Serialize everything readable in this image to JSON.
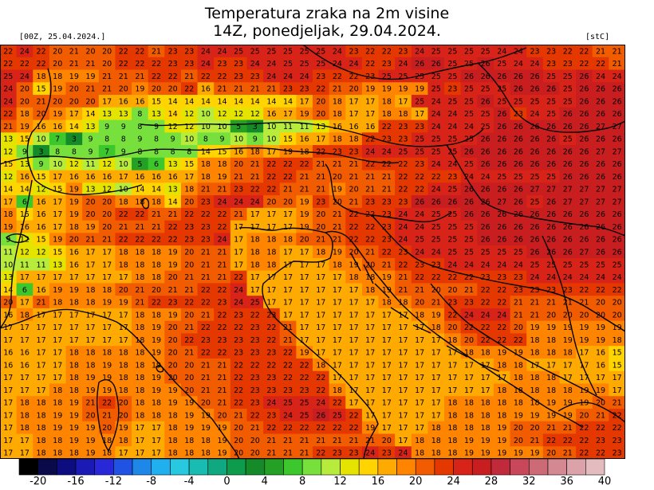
{
  "title_line1": "Temperatura zraka na 2m visine",
  "title_line2": "14Z, ponedjeljak, 29.04.2024.",
  "init_label": "[00Z, 25.04.2024.]",
  "unit_label": "[stC]",
  "map_data": {
    "grid_rows": [
      [
        22,
        24,
        22,
        20,
        21,
        20,
        20,
        22,
        22,
        21,
        23,
        23,
        24,
        24,
        25,
        25,
        25,
        25,
        25,
        25,
        24,
        23,
        22,
        22,
        23,
        24,
        25,
        25,
        25,
        25,
        24,
        24,
        23,
        23,
        22,
        22,
        21,
        21
      ],
      [
        22,
        22,
        22,
        20,
        21,
        21,
        20,
        22,
        22,
        22,
        23,
        23,
        24,
        23,
        23,
        24,
        24,
        25,
        25,
        25,
        24,
        24,
        22,
        23,
        24,
        26,
        26,
        25,
        25,
        26,
        25,
        24,
        24,
        23,
        23,
        22,
        22,
        21
      ],
      [
        25,
        24,
        18,
        18,
        19,
        19,
        21,
        21,
        21,
        22,
        22,
        21,
        22,
        22,
        23,
        23,
        24,
        24,
        24,
        23,
        22,
        22,
        23,
        25,
        25,
        25,
        25,
        25,
        26,
        26,
        26,
        26,
        26,
        25,
        25,
        26,
        24,
        24
      ],
      [
        24,
        20,
        15,
        19,
        20,
        21,
        21,
        20,
        19,
        20,
        20,
        22,
        16,
        21,
        21,
        21,
        21,
        23,
        23,
        22,
        21,
        20,
        19,
        19,
        19,
        19,
        25,
        23,
        25,
        25,
        25,
        26,
        26,
        26,
        25,
        26,
        26,
        26
      ],
      [
        24,
        20,
        21,
        20,
        20,
        20,
        17,
        16,
        16,
        15,
        14,
        14,
        14,
        14,
        14,
        14,
        14,
        14,
        17,
        20,
        18,
        17,
        17,
        18,
        17,
        25,
        24,
        25,
        25,
        26,
        25,
        25,
        25,
        25,
        25,
        26,
        26,
        26
      ],
      [
        22,
        18,
        20,
        19,
        17,
        14,
        13,
        13,
        8,
        13,
        14,
        12,
        10,
        12,
        12,
        12,
        16,
        17,
        19,
        20,
        18,
        17,
        17,
        18,
        18,
        17,
        24,
        24,
        25,
        25,
        26,
        23,
        24,
        25,
        26,
        26,
        26,
        26
      ],
      [
        21,
        19,
        16,
        16,
        14,
        13,
        9,
        9,
        8,
        9,
        12,
        12,
        10,
        10,
        5,
        3,
        10,
        11,
        11,
        13,
        16,
        16,
        16,
        22,
        23,
        23,
        24,
        24,
        24,
        25,
        26,
        26,
        26,
        26,
        26,
        26,
        27,
        27
      ],
      [
        13,
        15,
        10,
        7,
        3,
        9,
        8,
        8,
        9,
        8,
        9,
        10,
        8,
        9,
        10,
        9,
        10,
        15,
        16,
        17,
        18,
        18,
        22,
        23,
        23,
        25,
        25,
        25,
        25,
        26,
        26,
        26,
        26,
        26,
        25,
        26,
        26,
        26
      ],
      [
        12,
        9,
        3,
        8,
        8,
        9,
        7,
        9,
        8,
        8,
        8,
        8,
        14,
        15,
        16,
        18,
        17,
        19,
        18,
        22,
        23,
        23,
        24,
        24,
        25,
        25,
        25,
        25,
        26,
        26,
        26,
        26,
        26,
        26,
        26,
        26,
        27,
        27
      ],
      [
        15,
        13,
        9,
        10,
        12,
        11,
        12,
        10,
        5,
        6,
        13,
        15,
        18,
        18,
        20,
        21,
        22,
        22,
        22,
        21,
        21,
        21,
        22,
        22,
        22,
        23,
        24,
        24,
        25,
        26,
        26,
        26,
        26,
        26,
        26,
        26,
        26,
        26
      ],
      [
        12,
        16,
        15,
        17,
        16,
        16,
        16,
        17,
        16,
        16,
        16,
        17,
        18,
        19,
        21,
        21,
        22,
        22,
        21,
        21,
        20,
        21,
        21,
        21,
        22,
        22,
        22,
        23,
        24,
        24,
        25,
        25,
        25,
        25,
        26,
        26,
        26,
        26
      ],
      [
        14,
        14,
        12,
        15,
        19,
        13,
        12,
        10,
        14,
        14,
        13,
        18,
        21,
        21,
        23,
        22,
        22,
        21,
        21,
        21,
        19,
        20,
        21,
        21,
        22,
        22,
        24,
        25,
        26,
        26,
        26,
        26,
        27,
        27,
        27,
        27,
        27,
        27
      ],
      [
        17,
        6,
        16,
        17,
        19,
        20,
        20,
        18,
        18,
        18,
        14,
        20,
        23,
        24,
        24,
        24,
        20,
        20,
        19,
        23,
        20,
        21,
        23,
        23,
        23,
        26,
        26,
        26,
        26,
        26,
        27,
        26,
        25,
        26,
        27,
        27,
        27,
        27
      ],
      [
        18,
        15,
        16,
        17,
        19,
        20,
        20,
        22,
        22,
        21,
        21,
        22,
        22,
        22,
        21,
        17,
        17,
        17,
        19,
        20,
        21,
        22,
        22,
        23,
        24,
        24,
        25,
        25,
        26,
        26,
        26,
        26,
        26,
        26,
        26,
        26,
        26,
        26
      ],
      [
        19,
        16,
        16,
        17,
        18,
        19,
        20,
        21,
        21,
        21,
        22,
        23,
        23,
        22,
        17,
        17,
        17,
        17,
        19,
        20,
        21,
        22,
        22,
        23,
        24,
        24,
        25,
        25,
        25,
        26,
        26,
        26,
        26,
        26,
        26,
        26,
        26,
        26
      ],
      [
        9,
        12,
        15,
        19,
        20,
        21,
        21,
        22,
        22,
        22,
        22,
        23,
        23,
        24,
        17,
        18,
        18,
        18,
        20,
        21,
        21,
        22,
        22,
        23,
        24,
        25,
        25,
        25,
        25,
        26,
        26,
        26,
        26,
        26,
        26,
        26,
        26,
        26
      ],
      [
        11,
        12,
        12,
        15,
        16,
        17,
        17,
        18,
        18,
        18,
        19,
        20,
        21,
        21,
        17,
        18,
        18,
        17,
        17,
        18,
        19,
        20,
        21,
        22,
        23,
        24,
        24,
        25,
        25,
        25,
        25,
        25,
        26,
        26,
        26,
        27,
        26,
        26
      ],
      [
        10,
        11,
        11,
        13,
        16,
        17,
        17,
        18,
        18,
        18,
        19,
        20,
        21,
        21,
        17,
        18,
        18,
        17,
        17,
        17,
        18,
        19,
        20,
        21,
        22,
        23,
        23,
        24,
        24,
        24,
        24,
        24,
        25,
        25,
        25,
        25,
        25,
        25
      ],
      [
        13,
        17,
        17,
        17,
        17,
        17,
        17,
        17,
        18,
        18,
        20,
        21,
        21,
        21,
        22,
        17,
        17,
        17,
        17,
        17,
        17,
        18,
        18,
        19,
        21,
        22,
        22,
        22,
        22,
        23,
        23,
        23,
        24,
        24,
        24,
        24,
        24,
        24
      ],
      [
        14,
        6,
        16,
        19,
        19,
        18,
        18,
        20,
        21,
        20,
        21,
        21,
        22,
        22,
        24,
        17,
        17,
        17,
        17,
        17,
        17,
        17,
        18,
        19,
        21,
        21,
        20,
        20,
        21,
        22,
        22,
        23,
        23,
        23,
        23,
        22,
        22,
        22
      ],
      [
        20,
        17,
        21,
        18,
        18,
        18,
        19,
        19,
        21,
        22,
        23,
        22,
        22,
        23,
        24,
        25,
        17,
        17,
        17,
        17,
        17,
        17,
        17,
        18,
        18,
        20,
        21,
        23,
        23,
        22,
        22,
        21,
        21,
        21,
        21,
        21,
        20,
        20
      ],
      [
        16,
        18,
        17,
        17,
        17,
        17,
        17,
        17,
        18,
        18,
        19,
        20,
        21,
        22,
        23,
        22,
        23,
        17,
        17,
        17,
        17,
        17,
        17,
        17,
        17,
        18,
        19,
        22,
        24,
        24,
        24,
        21,
        21,
        20,
        20,
        20,
        20,
        20
      ],
      [
        17,
        17,
        17,
        17,
        17,
        17,
        17,
        17,
        18,
        19,
        20,
        21,
        22,
        22,
        22,
        23,
        22,
        21,
        17,
        17,
        17,
        17,
        17,
        17,
        17,
        17,
        18,
        20,
        22,
        22,
        22,
        20,
        19,
        19,
        19,
        19,
        19,
        19
      ],
      [
        17,
        17,
        17,
        17,
        17,
        17,
        17,
        17,
        18,
        19,
        20,
        22,
        23,
        23,
        23,
        23,
        22,
        21,
        17,
        17,
        17,
        17,
        17,
        17,
        17,
        17,
        17,
        18,
        20,
        22,
        22,
        22,
        18,
        18,
        19,
        19,
        19,
        18
      ],
      [
        16,
        16,
        17,
        17,
        18,
        18,
        18,
        18,
        18,
        19,
        20,
        21,
        22,
        22,
        23,
        23,
        23,
        22,
        19,
        17,
        17,
        17,
        17,
        17,
        17,
        17,
        17,
        17,
        18,
        18,
        19,
        19,
        18,
        18,
        18,
        17,
        16,
        15
      ],
      [
        16,
        16,
        17,
        17,
        18,
        18,
        19,
        18,
        18,
        19,
        20,
        20,
        21,
        21,
        22,
        22,
        22,
        22,
        22,
        18,
        17,
        17,
        17,
        17,
        17,
        17,
        17,
        17,
        17,
        17,
        18,
        18,
        17,
        17,
        17,
        17,
        16,
        15
      ],
      [
        17,
        17,
        17,
        17,
        18,
        19,
        19,
        18,
        18,
        19,
        20,
        20,
        21,
        21,
        22,
        23,
        23,
        22,
        22,
        22,
        17,
        17,
        17,
        17,
        17,
        17,
        17,
        17,
        17,
        17,
        17,
        18,
        18,
        18,
        17,
        17,
        17,
        17
      ],
      [
        17,
        17,
        17,
        18,
        18,
        19,
        19,
        18,
        18,
        19,
        19,
        20,
        21,
        21,
        22,
        23,
        23,
        23,
        23,
        22,
        18,
        17,
        17,
        17,
        17,
        17,
        17,
        17,
        17,
        17,
        18,
        18,
        18,
        18,
        18,
        19,
        19,
        17
      ],
      [
        17,
        18,
        18,
        18,
        19,
        21,
        22,
        20,
        18,
        18,
        19,
        19,
        20,
        21,
        22,
        23,
        24,
        25,
        25,
        24,
        22,
        17,
        17,
        17,
        17,
        17,
        17,
        18,
        18,
        18,
        18,
        18,
        18,
        19,
        19,
        19,
        20,
        21
      ],
      [
        17,
        18,
        18,
        19,
        19,
        20,
        21,
        20,
        18,
        18,
        18,
        19,
        19,
        20,
        21,
        22,
        23,
        24,
        25,
        26,
        25,
        22,
        17,
        17,
        17,
        17,
        17,
        18,
        18,
        18,
        18,
        19,
        19,
        19,
        19,
        20,
        21,
        22
      ],
      [
        17,
        18,
        18,
        19,
        19,
        19,
        20,
        19,
        17,
        17,
        18,
        19,
        19,
        19,
        20,
        21,
        22,
        22,
        22,
        22,
        22,
        22,
        19,
        17,
        17,
        17,
        18,
        18,
        18,
        18,
        19,
        20,
        20,
        21,
        21,
        22,
        22,
        22
      ],
      [
        17,
        17,
        18,
        18,
        19,
        19,
        18,
        18,
        17,
        17,
        18,
        18,
        18,
        19,
        20,
        20,
        21,
        21,
        21,
        21,
        21,
        21,
        21,
        20,
        17,
        18,
        18,
        18,
        19,
        19,
        19,
        20,
        21,
        22,
        22,
        22,
        23,
        23
      ],
      [
        17,
        17,
        18,
        18,
        18,
        19,
        18,
        17,
        17,
        17,
        18,
        18,
        18,
        19,
        20,
        20,
        21,
        21,
        21,
        22,
        23,
        23,
        24,
        23,
        24,
        18,
        18,
        18,
        19,
        19,
        19,
        19,
        19,
        20,
        21,
        22,
        22,
        23
      ]
    ],
    "scale_colors": [
      "#000000",
      "#0a0a4a",
      "#0d0d80",
      "#1a1ab4",
      "#2828d8",
      "#2052e4",
      "#1e88e8",
      "#20b0f0",
      "#28c8e0",
      "#18bcb0",
      "#10a880",
      "#0c9c4c",
      "#148a28",
      "#24a024",
      "#3cc82c",
      "#78e03c",
      "#b8ec3c",
      "#e4e400",
      "#ffd400",
      "#ffaa00",
      "#ff8400",
      "#f25c00",
      "#e43800",
      "#d82418",
      "#c81e20",
      "#c02a3a",
      "#c8485a",
      "#cc6a76",
      "#d48892",
      "#dca2aa",
      "#e4bcc0"
    ],
    "colorbar_ticks": [
      "-20",
      "-16",
      "-12",
      "-8",
      "-4",
      "0",
      "4",
      "8",
      "12",
      "16",
      "20",
      "24",
      "28",
      "32",
      "36",
      "40"
    ]
  }
}
